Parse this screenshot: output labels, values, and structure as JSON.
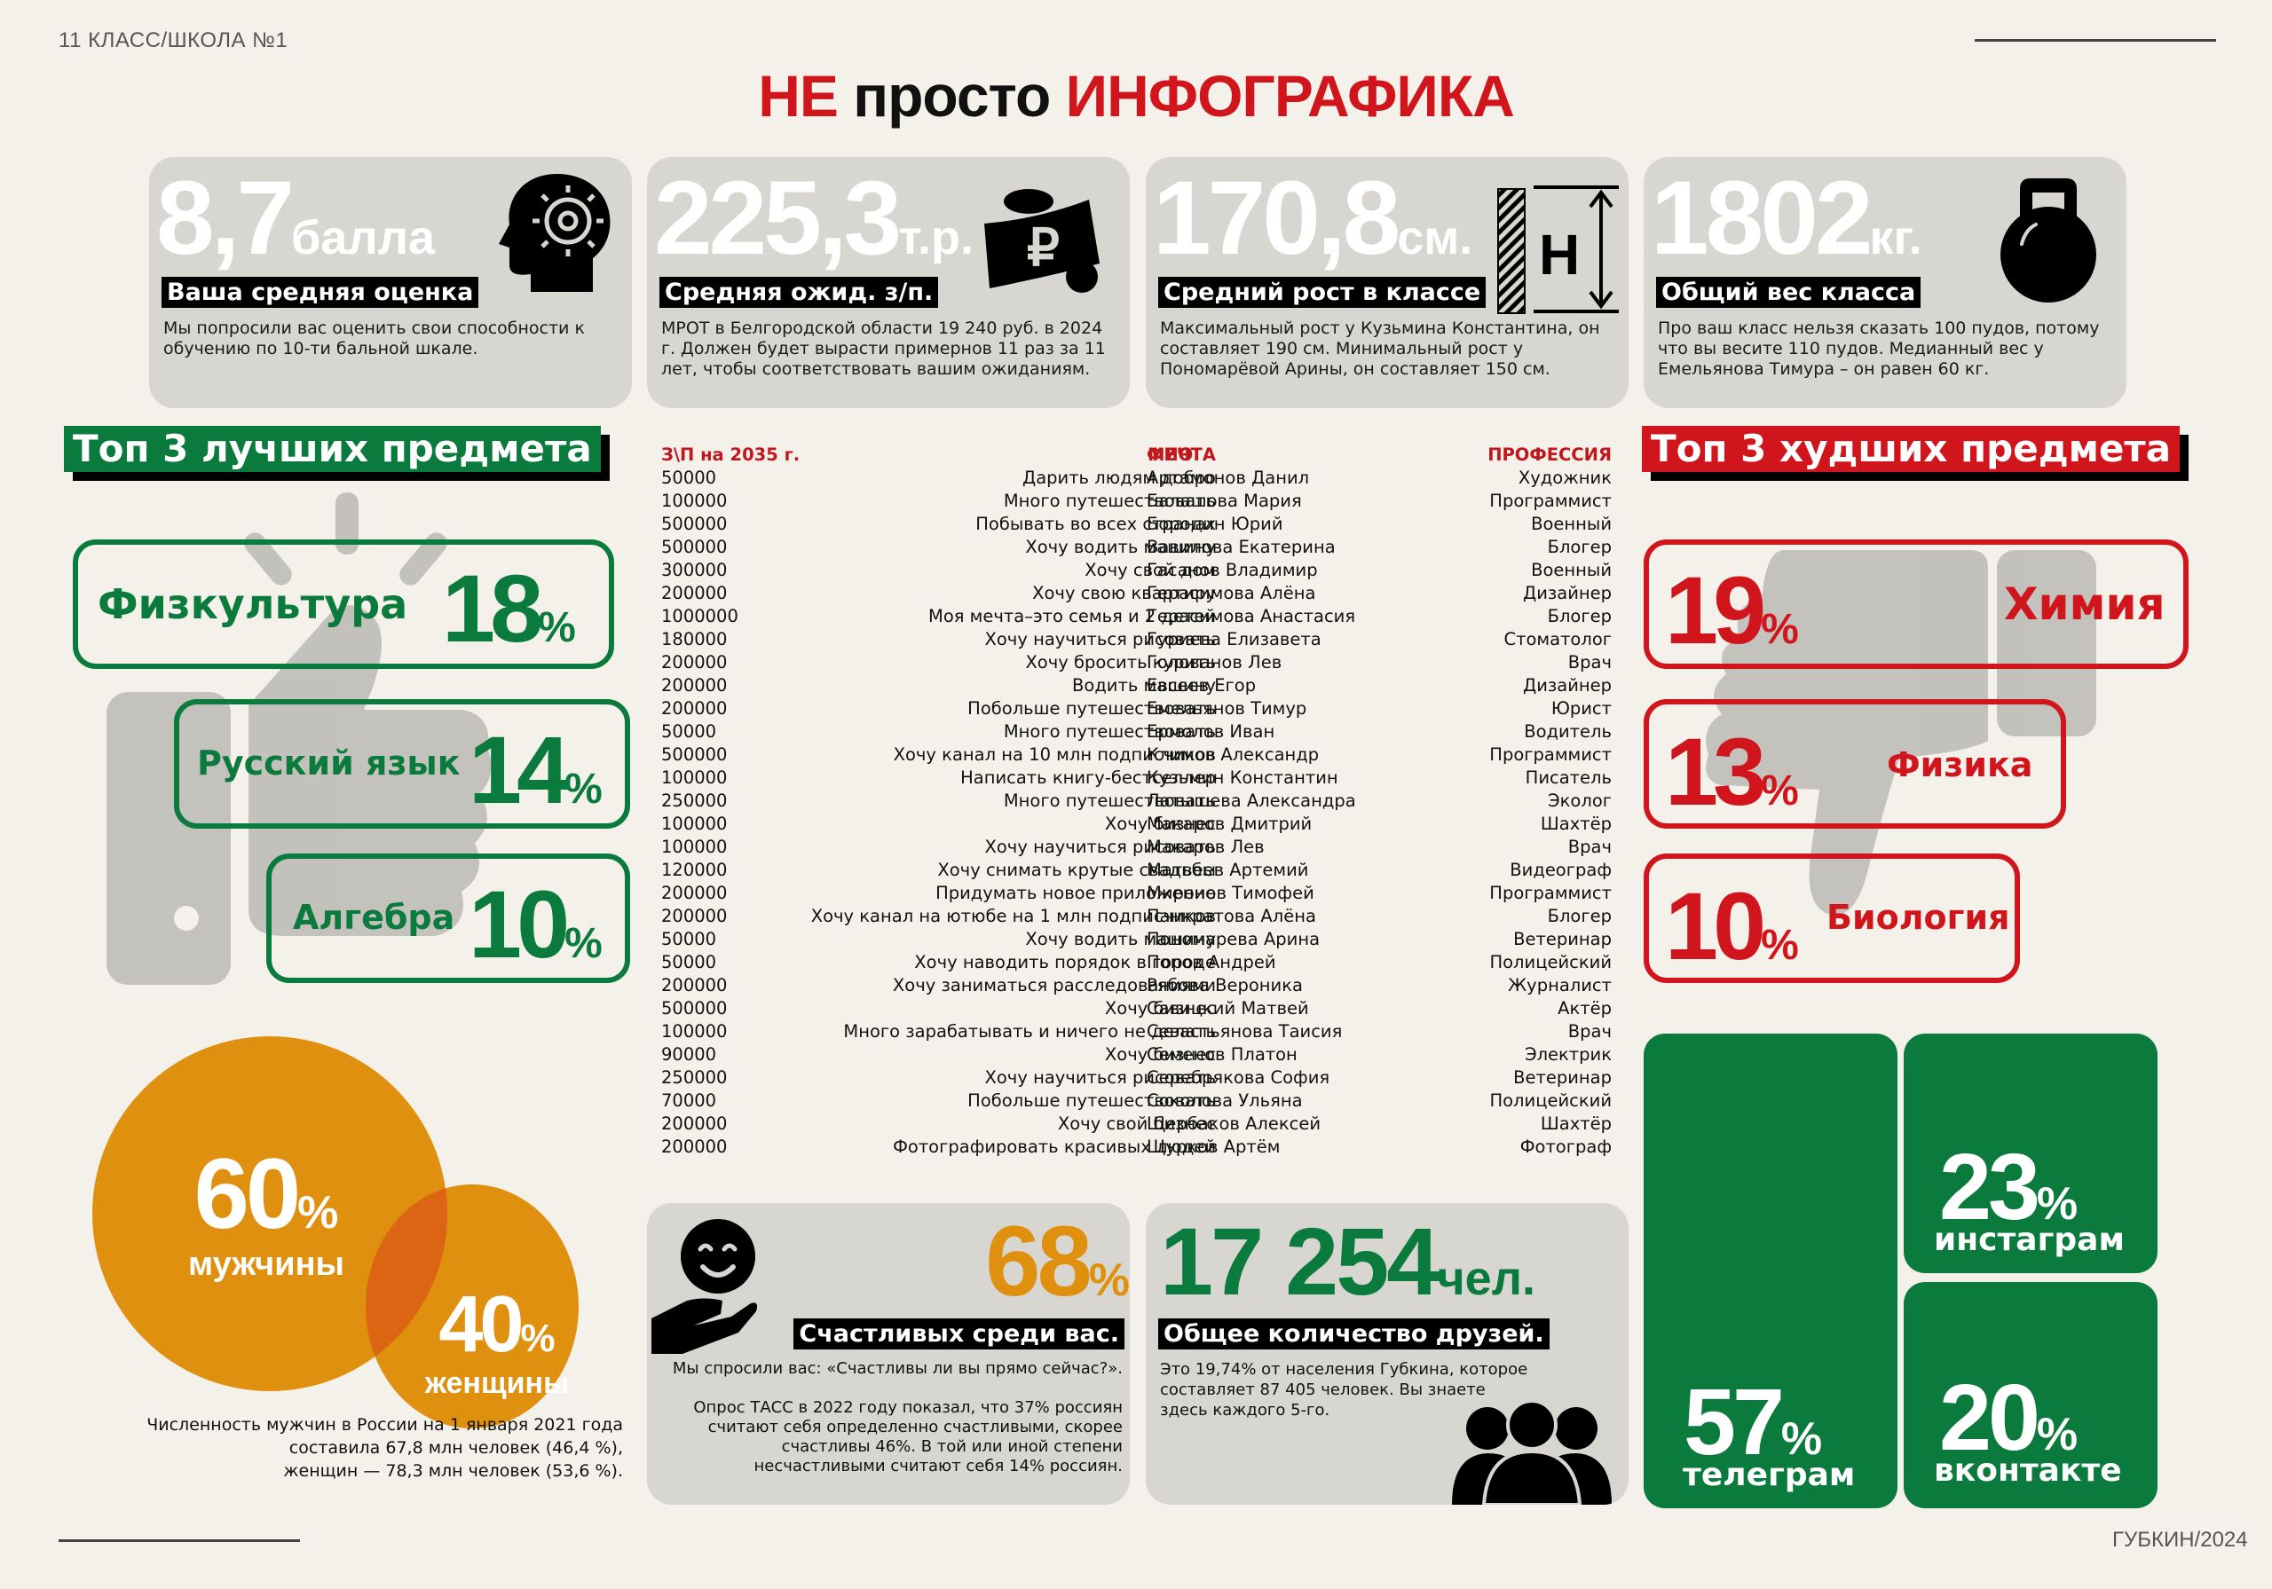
{
  "header": {
    "corner_left": "11 КЛАСС/ШКОЛА №1",
    "title_part1": "НЕ",
    "title_part2": " просто ",
    "title_part3": "ИНФОГРАФИКА"
  },
  "footer": {
    "corner_right": "ГУБКИН/2024"
  },
  "stats": [
    {
      "value": "8,7",
      "unit": "балла",
      "label": "Ваша средняя оценка",
      "desc": "Мы попросили вас оценить свои способности к обучению по 10-ти бальной шкале.",
      "icon": "head-gears-icon"
    },
    {
      "value": "225,3",
      "unit": "т.р.",
      "label": "Средняя ожид. з/п.",
      "desc": "МРОТ в Белгородской области 19 240 руб. в 2024 г. Должен будет вырасти примернов 11 раз за 11 лет, чтобы соответствовать вашим ожиданиям.",
      "icon": "ruble-money-bag-icon"
    },
    {
      "value": "170,8",
      "unit": "см.",
      "label": "Средний рост в классе",
      "desc": "Максимальный рост у Кузьмина Константина, он составляет 190 см. Минимальный рост у Пономарёвой Арины, он составляет 150 см.",
      "icon": "height-measure-icon"
    },
    {
      "value": "1802",
      "unit": "кг.",
      "label": "Общий вес класса",
      "desc": "Про ваш класс нельзя сказать 100 пудов, потому что вы весите 110 пудов. Медианный вес у Емельянова Тимура – он равен 60 кг.",
      "icon": "kettlebell-icon"
    }
  ],
  "best_subjects": {
    "title": "Топ 3 лучших предмета",
    "items": [
      {
        "name": "Физкультура",
        "pct": "18",
        "sign": "%"
      },
      {
        "name": "Русский язык",
        "pct": "14",
        "sign": "%"
      },
      {
        "name": "Алгебра",
        "pct": "10",
        "sign": "%"
      }
    ]
  },
  "worst_subjects": {
    "title": "Топ 3 худших предмета",
    "items": [
      {
        "name": "Химия",
        "pct": "19",
        "sign": "%"
      },
      {
        "name": "Физика",
        "pct": "13",
        "sign": "%"
      },
      {
        "name": "Биология",
        "pct": "10",
        "sign": "%"
      }
    ]
  },
  "table": {
    "headers": {
      "salary": "З\\П на 2035 г.",
      "dream": "МЕЧТА",
      "name": "ФИО",
      "profession": "ПРОФЕССИЯ"
    },
    "rows": [
      [
        "50000",
        "Дарить людям добро",
        "Артамонов Данил",
        "Художник"
      ],
      [
        "100000",
        "Много путешествовать",
        "Балашова Мария",
        "Программист"
      ],
      [
        "500000",
        "Побывать во всех странах",
        "Бородин Юрий",
        "Военный"
      ],
      [
        "500000",
        "Хочу водить машину",
        "Вавилова Екатерина",
        "Блогер"
      ],
      [
        "300000",
        "Хочу свой дом",
        "Гасанов Владимир",
        "Военный"
      ],
      [
        "200000",
        "Хочу свою квартиру",
        "Герасимова Алёна",
        "Дизайнер"
      ],
      [
        "1000000",
        "Моя мечта–это семья и 2 детей",
        "Герасимова Анастасия",
        "Блогер"
      ],
      [
        "180000",
        "Хочу научиться рисовать",
        "Гуриева Елизавета",
        "Стоматолог"
      ],
      [
        "200000",
        "Хочу бросить курить",
        "Голованов Лев",
        "Врач"
      ],
      [
        "200000",
        "Водить машину",
        "Евсеев Егор",
        "Дизайнер"
      ],
      [
        "200000",
        "Побольше путешествовать",
        "Емельянов Тимур",
        "Юрист"
      ],
      [
        "50000",
        "Много путешествовать",
        "Ермолов Иван",
        "Водитель"
      ],
      [
        "500000",
        "Хочу канал на 10 млн подписчиков",
        "Климов Александр",
        "Программист"
      ],
      [
        "100000",
        "Написать книгу-бестселлер",
        "Кузьмин Константин",
        "Писатель"
      ],
      [
        "250000",
        "Много путешествовать",
        "Латышева Александра",
        "Эколог"
      ],
      [
        "100000",
        "Хочу бизнес",
        "Макаров Дмитрий",
        "Шахтёр"
      ],
      [
        "100000",
        "Хочу научиться рисовать",
        "Макаров Лев",
        "Врач"
      ],
      [
        "120000",
        "Хочу снимать крутые свадьбы",
        "Матвеев Артемий",
        "Видеограф"
      ],
      [
        "200000",
        "Придумать новое приложение",
        "Миронов Тимофей",
        "Программист"
      ],
      [
        "200000",
        "Хочу канал на ютюбе на 1 млн подписчиков",
        "Панкратова Алёна",
        "Блогер"
      ],
      [
        "50000",
        "Хочу водить машину",
        "Пономарева Арина",
        "Ветеринар"
      ],
      [
        "50000",
        "Хочу наводить порядок в городе",
        "Попов Андрей",
        "Полицейский"
      ],
      [
        "200000",
        "Хочу заниматься расследованиями",
        "Рябова Вероника",
        "Журналист"
      ],
      [
        "500000",
        "Хочу бизнес",
        "Савицкий Матвей",
        "Актёр"
      ],
      [
        "100000",
        "Много зарабатывать и ничего не делать",
        "Севастьянова Таисия",
        "Врач"
      ],
      [
        "90000",
        "Хочу бизнес",
        "Семенов Платон",
        "Электрик"
      ],
      [
        "250000",
        "Хочу научиться рисовать",
        "Серебрякова София",
        "Ветеринар"
      ],
      [
        "70000",
        "Побольше путешествовать",
        "Соколова Ульяна",
        "Полицейский"
      ],
      [
        "200000",
        "Хочу свой бизнес",
        "Щербаков Алексей",
        "Шахтёр"
      ],
      [
        "200000",
        "Фотографировать красивых людей",
        "Щурков Артём",
        "Фотограф"
      ]
    ]
  },
  "gender": {
    "men_pct": "60",
    "men_label": "мужчины",
    "women_pct": "40",
    "women_label": "женщины",
    "sign": "%",
    "note_line1": "Численность мужчин в России на 1 января 2021 года",
    "note_line2": "составила 67,8 млн человек (46,4 %),",
    "note_line3": "женщин — 78,3 млн человек (53,6 %).",
    "color": "#e0900f"
  },
  "happiness": {
    "value": "68",
    "sign": "%",
    "label": "Счастливых среди вас.",
    "question": "Мы спросили вас: «Счастливы ли вы прямо сейчас?».",
    "note": "Опрос ТАСС в 2022 году показал, что 37% россиян считают себя определенно счастливыми, скорее счастливы 46%. В той или иной степени несчастливыми считают себя 14% россиян.",
    "icon": "smile-in-hand-icon"
  },
  "friends": {
    "value": "17 254",
    "unit": "чел.",
    "label": "Общее количество друзей.",
    "desc": "Это 19,74% от населения Губкина, которое составляет 87 405 человек. Вы знаете здесь каждого 5-го.",
    "icon": "group-people-icon"
  },
  "social": [
    {
      "pct": "57",
      "sign": "%",
      "label": "телеграм"
    },
    {
      "pct": "23",
      "sign": "%",
      "label": "инстаграм"
    },
    {
      "pct": "20",
      "sign": "%",
      "label": "вконтакте"
    }
  ],
  "colors": {
    "green": "#0b7a3d",
    "red": "#d0161c",
    "orange": "#e0900f",
    "card_gray": "#d8d6d1",
    "background": "#f4f1ea"
  }
}
